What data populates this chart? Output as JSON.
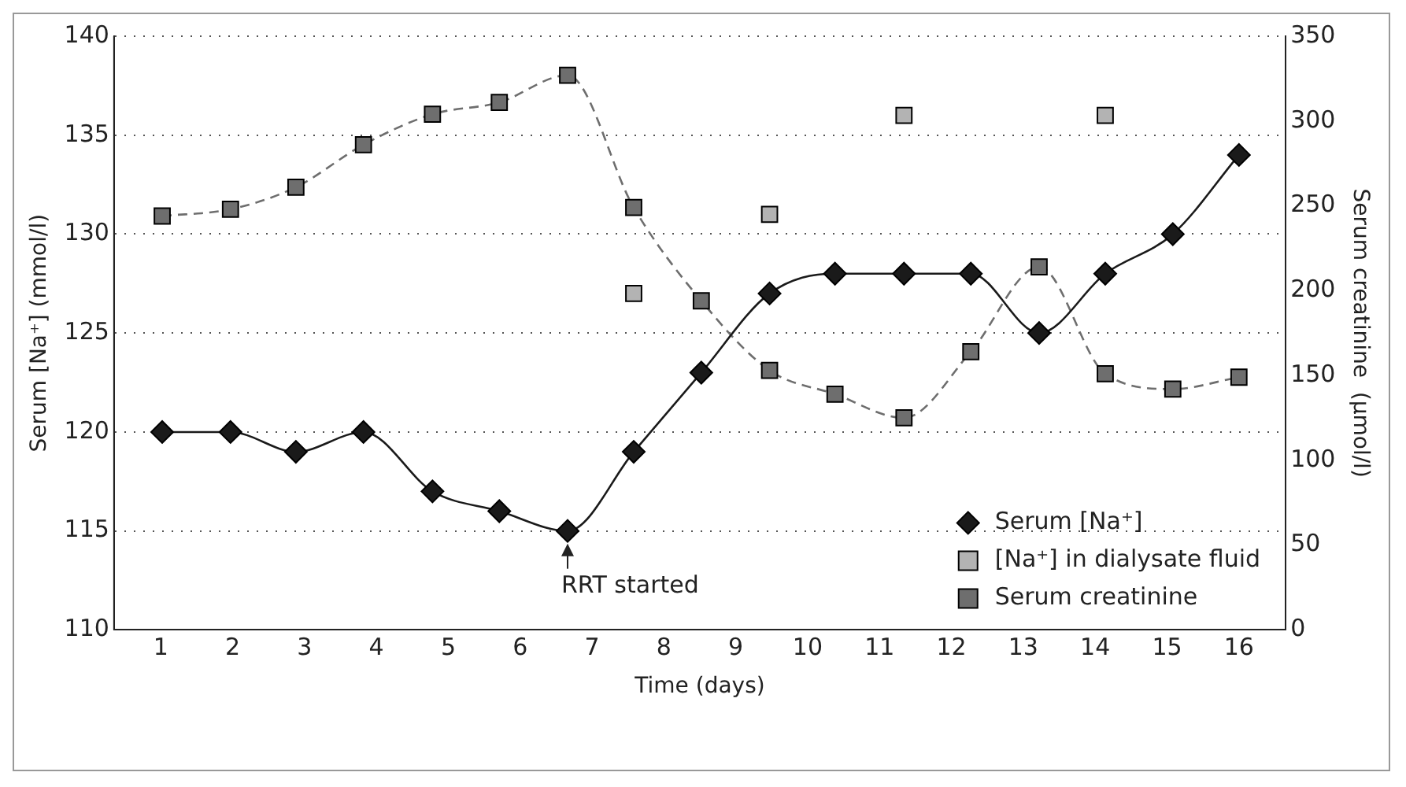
{
  "chart_data": {
    "type": "line",
    "xlabel": "Time (days)",
    "ylabel": "Serum [Na⁺] (mmol/l)",
    "y2label": "Serum creatinine  (µmol/l)",
    "xlim": [
      0.35,
      16.65
    ],
    "xticks": [
      1,
      2,
      3,
      4,
      5,
      6,
      7,
      8,
      9,
      10,
      11,
      12,
      13,
      14,
      15,
      16
    ],
    "ylim": [
      110,
      140
    ],
    "yticks": [
      110,
      115,
      120,
      125,
      130,
      135,
      140
    ],
    "y2lim": [
      0,
      350
    ],
    "y2ticks": [
      0,
      50,
      100,
      150,
      200,
      250,
      300,
      350
    ],
    "grid": "y",
    "legend": "bottom right",
    "annotations": [
      {
        "text": "RRT started",
        "x": 6.66,
        "y": 115
      }
    ],
    "series": [
      {
        "name": "Serum [Na⁺]",
        "type": "line",
        "color": "#1a1a1a",
        "marker": "diamond",
        "line_style": "solid",
        "x": [
          1.02,
          1.97,
          2.88,
          3.82,
          4.78,
          5.71,
          6.66,
          7.58,
          8.52,
          9.47,
          10.38,
          11.34,
          12.27,
          13.22,
          14.14,
          15.08,
          16.0
        ],
        "values": [
          120,
          120,
          119,
          120,
          117,
          116,
          115,
          119,
          123,
          127,
          128,
          128,
          128,
          125,
          128,
          130,
          134
        ]
      },
      {
        "name": "[Na⁺] in dialysate fluid",
        "type": "scatter",
        "color": "#b3b3b3",
        "marker": "square",
        "x": [
          7.58,
          9.47,
          11.34,
          14.14
        ],
        "values": [
          127,
          131,
          136,
          136
        ]
      },
      {
        "name": "Serum creatinine",
        "axis": "y2",
        "color": "#6e6e6e",
        "marker": "square",
        "line_style": "dashed",
        "x": [
          1.02,
          1.97,
          2.88,
          3.82,
          4.78,
          5.71,
          6.66,
          7.58,
          8.52,
          9.47,
          10.38,
          11.34,
          12.27,
          13.22,
          14.14,
          15.08,
          16.0
        ],
        "values": [
          244,
          248,
          261,
          286,
          304,
          311,
          327,
          249,
          194,
          153,
          139,
          125,
          164,
          214,
          151,
          142,
          149
        ]
      }
    ]
  }
}
